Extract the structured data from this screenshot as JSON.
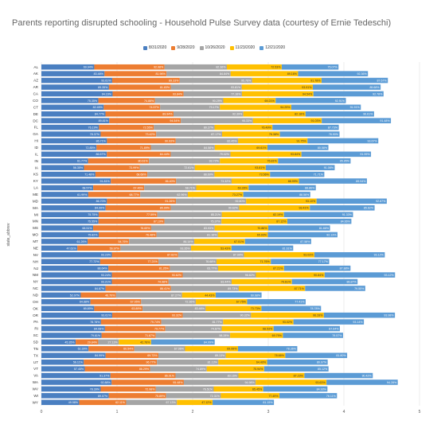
{
  "chart_data": {
    "type": "bar",
    "stacked": true,
    "orientation": "horizontal",
    "title": "Parents reporting disrupted schooling - Household Pulse Survey data (courtesy of Ernie Tedeschi)",
    "xlabel": "",
    "ylabel": "state_abbrev",
    "xlim": [
      0,
      5
    ],
    "x_ticks": [
      "0",
      "1",
      "2",
      "3",
      "4",
      "5"
    ],
    "grid": true,
    "legend_position": "top",
    "colors": [
      "#4a7fc1",
      "#ed7d31",
      "#a5a5a5",
      "#ffc000",
      "#5b9bd5"
    ],
    "categories": [
      "AL",
      "AK",
      "AZ",
      "AR",
      "CA",
      "CO",
      "CT",
      "DE",
      "DC",
      "FL",
      "GA",
      "HI",
      "ID",
      "IL",
      "IN",
      "IA",
      "KS",
      "KY",
      "LA",
      "ME",
      "MD",
      "MA",
      "MI",
      "MN",
      "MS",
      "MO",
      "MT",
      "NE",
      "NV",
      "NH",
      "NJ",
      "NM",
      "NY",
      "NC",
      "ND",
      "OH",
      "OK",
      "OR",
      "PA",
      "RI",
      "SC",
      "SD",
      "TN",
      "TX",
      "UT",
      "VT",
      "VA",
      "WA",
      "WV",
      "WI",
      "WY"
    ],
    "series": [
      {
        "name": "8/31/2020",
        "values": [
          0.6994,
          0.8348,
          0.9361,
          0.8935,
          0.9416,
          0.7535,
          0.8245,
          0.8477,
          0.8981,
          0.7619,
          0.7837,
          0.8671,
          0.7285,
          0.8657,
          0.6177,
          0.5635,
          0.7148,
          0.9181,
          0.6857,
          0.6199,
          0.867,
          0.8499,
          0.7575,
          0.7555,
          0.6851,
          0.7582,
          0.6126,
          0.4761,
          0.9323,
          0.7772,
          0.8864,
          0.9324,
          0.9321,
          0.8487,
          0.5207,
          0.6488,
          0.6989,
          0.9361,
          0.7878,
          0.8408,
          0.7961,
          0.4535,
          0.6239,
          0.8499,
          0.5611,
          0.5745,
          0.9137,
          0.9288,
          0.7839,
          0.8907,
          0.4998
        ]
      },
      {
        "name": "9/28/2020",
        "values": [
          0.9298,
          0.8196,
          0.8933,
          0.8183,
          0.9384,
          0.7488,
          0.7457,
          0.8994,
          0.9454,
          0.7255,
          0.7342,
          0.9093,
          0.7189,
          0.8444,
          0.8061,
          0.7399,
          0.6868,
          0.864,
          0.6746,
          0.6877,
          0.9126,
          0.8599,
          0.7759,
          0.8719,
          0.7669,
          0.7648,
          0.5476,
          0.5697,
          0.8762,
          0.7721,
          0.8126,
          0.9362,
          0.7498,
          0.8641,
          0.467,
          0.6705,
          0.6389,
          0.9332,
          0.7974,
          0.7977,
          0.7167,
          0.2984,
          0.6054,
          0.6973,
          0.9677,
          0.8629,
          0.8601,
          0.9548,
          0.7298,
          0.7589,
          0.6211
        ]
      },
      {
        "name": "10/26/2020",
        "values": [
          0.8236,
          0.8484,
          0.9576,
          0.9381,
          0.7716,
          0.9029,
          0.7917,
          0.9239,
          0.9533,
          0.8027,
          0.8717,
          0.8245,
          0.8458,
          0.7902,
          0.9372,
          0.7261,
          0.8869,
          0.7332,
          0.6871,
          0.6296,
          0.928,
          0.9062,
          0.8521,
          0.7537,
          0.8393,
          0.8116,
          0.8614,
          0.9335,
          0.8709,
          0.7668,
          0.6377,
          0.9682,
          0.8344,
          0.8973,
          0.8727,
          0.7236,
          0.8346,
          0.9032,
          0.8177,
          0.7467,
          0.9828,
          0.2713,
          0.6706,
          0.8913,
          0.8113,
          0.7489,
          0.8316,
          0.9498,
          0.7651,
          0.7231,
          0.6713
        ]
      },
      {
        "name": "11/23/2020",
        "values": [
          0.7253,
          0.8916,
          0.9178,
          0.9391,
          0.9454,
          0.6921,
          0.9429,
          0.8218,
          0.9103,
          0.7649,
          0.7638,
          0.9175,
          0.6961,
          0.9384,
          0.7681,
          0.9381,
          0.7356,
          0.8899,
          0.6928,
          0.7327,
          0.931,
          0.9341,
          0.8219,
          0.8712,
          0.7086,
          0.6593,
          0.6701,
          0.5343,
          0.9303,
          0.7176,
          0.8721,
          0.9084,
          0.7961,
          0.8771,
          0.4443,
          0.6775,
          0.7373,
          0.9628,
          0.9302,
          0.6853,
          0.6979,
          0.4276,
          0.6999,
          0.7866,
          0.6449,
          0.7594,
          0.8723,
          0.9363,
          0.6545,
          0.7749,
          0.4712
        ]
      },
      {
        "name": "12/21/2020",
        "values": [
          0.7507,
          0.9236,
          0.8767,
          0.8968,
          0.9278,
          0.9291,
          0.9191,
          0.9061,
          0.9148,
          0.8773,
          0.789,
          0.9367,
          0.8058,
          0.9199,
          0.9595,
          0.9108,
          0.7171,
          0.8994,
          0.8886,
          0.8856,
          0.9287,
          0.8562,
          0.9133,
          0.8466,
          0.8166,
          0.9213,
          0.8758,
          0.8161,
          0.9312,
          0.7717,
          0.8788,
          0.9312,
          0.8687,
          0.7955,
          0.6068,
          0.7741,
          0.7878,
          0.9398,
          0.9314,
          0.8764,
          0.7957,
          0.8409,
          0.7836,
          0.818,
          0.8007,
          0.8512,
          0.9042,
          0.9428,
          0.8493,
          0.7611,
          0.8115
        ]
      }
    ]
  }
}
